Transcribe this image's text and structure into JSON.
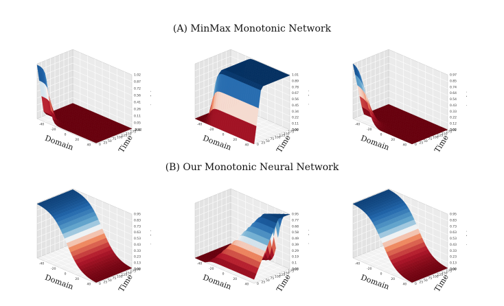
{
  "rows": [
    {
      "title": "(A) MinMax Monotonic Network"
    },
    {
      "title": "(B) Our Monotonic Neural Network"
    }
  ],
  "chart_data": [
    {
      "type": "surface",
      "panel": "A1",
      "title": "",
      "xlabel": "Domain",
      "ylabel": "Time",
      "zlabel": "u(t, x)",
      "xticks": [
        "-40",
        "-20",
        "0",
        "20",
        "40"
      ],
      "yticks": [
        "0",
        "25",
        "50",
        "75",
        "100",
        "125",
        "150",
        "175",
        "200"
      ],
      "zticks": [
        "-0.02",
        "0.05",
        "0.11",
        "0.26",
        "0.41",
        "0.56",
        "0.72",
        "0.87",
        "1.02"
      ],
      "zlim": [
        -0.02,
        1.02
      ],
      "profile": "kink",
      "center": -30,
      "width": 3,
      "sat_time": 40
    },
    {
      "type": "surface",
      "panel": "A2",
      "title": "",
      "xlabel": "Domain",
      "ylabel": "Time",
      "zlabel": "v(t, x)",
      "xticks": [
        "-40",
        "-20",
        "0",
        "20",
        "40"
      ],
      "yticks": [
        "0",
        "25",
        "50",
        "75",
        "100",
        "125",
        "150",
        "175",
        "200"
      ],
      "zticks": [
        "0.00",
        "0.11",
        "0.22",
        "0.34",
        "0.45",
        "0.56",
        "0.67",
        "0.78",
        "0.89",
        "1.01"
      ],
      "zlim": [
        0.0,
        1.01
      ],
      "profile": "rise",
      "center": -30,
      "width": 3,
      "sat_time": 40
    },
    {
      "type": "surface",
      "panel": "A3",
      "title": "",
      "xlabel": "Domain",
      "ylabel": "Time",
      "zlabel": "w(t, x)",
      "xticks": [
        "-40",
        "-20",
        "0",
        "20",
        "40"
      ],
      "yticks": [
        "0",
        "25",
        "50",
        "75",
        "100",
        "125",
        "150",
        "175",
        "200"
      ],
      "zticks": [
        "0.02",
        "0.12",
        "0.22",
        "0.33",
        "0.43",
        "0.54",
        "0.64",
        "0.74",
        "0.85",
        "0.97"
      ],
      "zlim": [
        0.02,
        0.97
      ],
      "profile": "kink",
      "center": -28,
      "width": 6,
      "sat_time": 60
    },
    {
      "type": "surface",
      "panel": "B1",
      "title": "",
      "xlabel": "Domain",
      "ylabel": "Time",
      "zlabel": "u(t, x)",
      "xticks": [
        "-40",
        "-20",
        "0",
        "20",
        "40"
      ],
      "yticks": [
        "0",
        "25",
        "50",
        "75",
        "100",
        "125",
        "150",
        "175",
        "200"
      ],
      "zticks": [
        "0.00",
        "0.13",
        "0.23",
        "0.33",
        "0.43",
        "0.53",
        "0.63",
        "0.73",
        "0.83",
        "0.95"
      ],
      "zlim": [
        0.0,
        0.95
      ],
      "profile": "sigmoid",
      "center": 0,
      "width": 12
    },
    {
      "type": "surface",
      "panel": "B2",
      "title": "",
      "xlabel": "Domain",
      "ylabel": "Time",
      "zlabel": "v(t, x)",
      "xticks": [
        "-40",
        "-20",
        "0",
        "20",
        "40"
      ],
      "yticks": [
        "0",
        "25",
        "50",
        "75",
        "100",
        "125",
        "150",
        "175",
        "200"
      ],
      "zticks": [
        "0.03",
        "0.1",
        "0.19",
        "0.29",
        "0.39",
        "0.49",
        "0.58",
        "0.68",
        "0.77",
        "0.95"
      ],
      "zlim": [
        0.03,
        0.95
      ],
      "profile": "wave",
      "center": -30,
      "width": 4,
      "speed": 0.3
    },
    {
      "type": "surface",
      "panel": "B3",
      "title": "",
      "xlabel": "Domain",
      "ylabel": "Time",
      "zlabel": "w(t, x)",
      "xticks": [
        "-40",
        "-20",
        "0",
        "20",
        "40"
      ],
      "yticks": [
        "0",
        "25",
        "50",
        "75",
        "100",
        "125",
        "150",
        "175",
        "200"
      ],
      "zticks": [
        "0.00",
        "0.13",
        "0.23",
        "0.33",
        "0.43",
        "0.53",
        "0.63",
        "0.73",
        "0.83",
        "0.95"
      ],
      "zlim": [
        0.0,
        0.95
      ],
      "profile": "sigmoid",
      "center": 0,
      "width": 12
    }
  ]
}
